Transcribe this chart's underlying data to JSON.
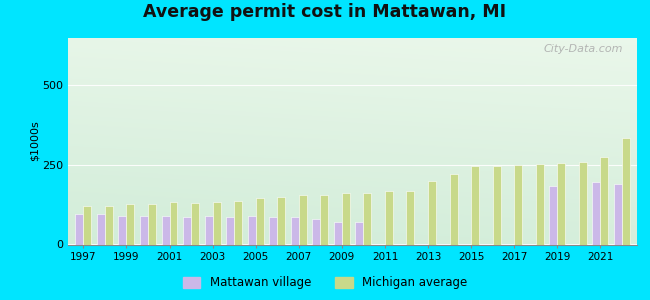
{
  "title": "Average permit cost in Mattawan, MI",
  "ylabel": "$1000s",
  "ylim": [
    0,
    650
  ],
  "yticks": [
    0,
    250,
    500
  ],
  "bg_outer": "#00e5ff",
  "mattawan_color": "#cbb8e8",
  "michigan_color": "#c8d98a",
  "years": [
    1997,
    1998,
    1999,
    2000,
    2001,
    2002,
    2003,
    2004,
    2005,
    2006,
    2007,
    2008,
    2009,
    2010,
    2011,
    2012,
    2013,
    2014,
    2015,
    2016,
    2017,
    2018,
    2019,
    2020,
    2021,
    2022
  ],
  "mattawan": [
    95,
    95,
    90,
    90,
    90,
    85,
    90,
    85,
    90,
    85,
    85,
    80,
    70,
    70,
    0,
    0,
    0,
    0,
    0,
    0,
    0,
    0,
    185,
    0,
    195,
    190
  ],
  "michigan": [
    120,
    120,
    128,
    128,
    132,
    130,
    132,
    138,
    145,
    148,
    155,
    155,
    162,
    162,
    168,
    168,
    198,
    222,
    245,
    246,
    250,
    252,
    255,
    260,
    275,
    335
  ],
  "legend_mattawan": "Mattawan village",
  "legend_michigan": "Michigan average",
  "watermark": "City-Data.com"
}
